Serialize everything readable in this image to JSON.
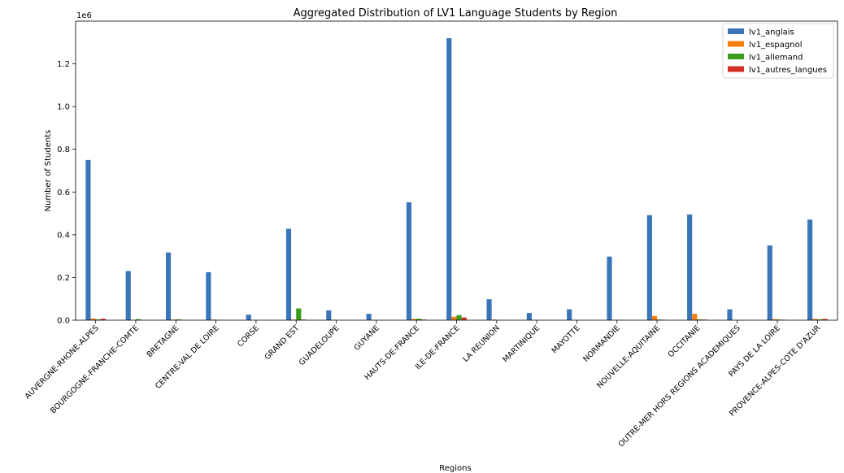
{
  "chart_data": {
    "type": "bar",
    "title": "Aggregated Distribution of LV1 Language Students by Region",
    "xlabel": "Regions",
    "ylabel": "Number of Students",
    "y_offset_label": "1e6",
    "ylim": [
      0,
      1.4
    ],
    "yticks": [
      0.0,
      0.2,
      0.4,
      0.6,
      0.8,
      1.0,
      1.2
    ],
    "ytick_labels": [
      "0.0",
      "0.2",
      "0.4",
      "0.6",
      "0.8",
      "1.0",
      "1.2"
    ],
    "legend_position": "top-right",
    "grid": false,
    "categories": [
      "AUVERGNE-RHONE-ALPES",
      "BOURGOGNE-FRANCHE-COMTE",
      "BRETAGNE",
      "CENTRE-VAL DE LOIRE",
      "CORSE",
      "GRAND EST",
      "GUADELOUPE",
      "GUYANE",
      "HAUTS-DE-FRANCE",
      "ILE-DE-FRANCE",
      "LA REUNION",
      "MARTINIQUE",
      "MAYOTTE",
      "NORMANDIE",
      "NOUVELLE-AQUITAINE",
      "OCCITANIE",
      "OUTRE-MER HORS REGIONS ACADEMIQUES",
      "PAYS DE LA LOIRE",
      "PROVENCE-ALPES-COTE D'AZUR"
    ],
    "series": [
      {
        "name": "lv1_anglais",
        "color": "#3a75b8",
        "values": [
          0.75,
          0.23,
          0.317,
          0.225,
          0.026,
          0.428,
          0.046,
          0.03,
          0.552,
          1.32,
          0.098,
          0.034,
          0.051,
          0.298,
          0.492,
          0.495,
          0.051,
          0.35,
          0.471
        ]
      },
      {
        "name": "lv1_espagnol",
        "color": "#f37f0e",
        "values": [
          0.008,
          0.002,
          0.003,
          0.003,
          0.0005,
          0.003,
          0.002,
          0.001,
          0.006,
          0.016,
          0.003,
          0.001,
          0.0005,
          0.002,
          0.02,
          0.03,
          0.001,
          0.005,
          0.006
        ]
      },
      {
        "name": "lv1_allemand",
        "color": "#3a9e1a",
        "values": [
          0.004,
          0.005,
          0.004,
          0.002,
          0.0002,
          0.055,
          0.0002,
          0.0002,
          0.007,
          0.024,
          0.0003,
          0.0002,
          0.0001,
          0.002,
          0.003,
          0.004,
          0.0002,
          0.003,
          0.004
        ]
      },
      {
        "name": "lv1_autres_langues",
        "color": "#d32f26",
        "values": [
          0.007,
          0.001,
          0.001,
          0.001,
          0.0002,
          0.003,
          0.0003,
          0.0002,
          0.003,
          0.013,
          0.0005,
          0.0002,
          0.0002,
          0.001,
          0.002,
          0.003,
          0.0003,
          0.002,
          0.006
        ]
      }
    ]
  }
}
